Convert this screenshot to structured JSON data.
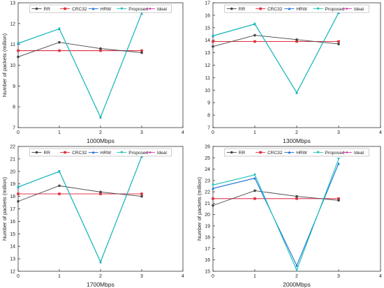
{
  "legend": [
    "RR",
    "CRC32",
    "HRW",
    "Proposed",
    "Ideal"
  ],
  "colors": {
    "RR": "#444444",
    "CRC32": "#e0303a",
    "HRW": "#1f6fd6",
    "Proposed": "#18c1b5",
    "Ideal": "#d23aa6"
  },
  "chart_data": [
    {
      "type": "line",
      "xlabel": "1000Mbps",
      "ylabel": "Number of packets (million)",
      "xlim": [
        0,
        4
      ],
      "ylim": [
        7,
        13
      ],
      "xticks": [
        "0",
        "1",
        "2",
        "3",
        "4"
      ],
      "yticks": [
        "7",
        "8",
        "9",
        "10",
        "11",
        "12",
        "13"
      ],
      "x": [
        0,
        1,
        2,
        3
      ],
      "legend_position": "top-center",
      "series": [
        {
          "name": "RR",
          "values": [
            10.4,
            11.1,
            10.8,
            10.6
          ]
        },
        {
          "name": "CRC32",
          "values": [
            10.7,
            10.7,
            10.7,
            10.7
          ]
        },
        {
          "name": "HRW",
          "values": [
            11.05,
            11.75,
            7.5,
            12.5
          ]
        },
        {
          "name": "Proposed",
          "values": [
            11.05,
            11.75,
            7.5,
            12.5
          ]
        },
        {
          "name": "Ideal",
          "values": [
            10.7,
            10.7,
            10.7,
            10.7
          ]
        }
      ]
    },
    {
      "type": "line",
      "xlabel": "1300Mbps",
      "ylabel": "",
      "xlim": [
        0,
        4
      ],
      "ylim": [
        7,
        17
      ],
      "xticks": [
        "0",
        "1",
        "2",
        "3",
        "4"
      ],
      "yticks": [
        "7",
        "8",
        "9",
        "10",
        "11",
        "12",
        "13",
        "14",
        "15",
        "16",
        "17"
      ],
      "x": [
        0,
        1,
        2,
        3
      ],
      "legend_position": "top-center",
      "series": [
        {
          "name": "RR",
          "values": [
            13.5,
            14.4,
            14.05,
            13.7
          ]
        },
        {
          "name": "CRC32",
          "values": [
            13.9,
            13.9,
            13.9,
            13.9
          ]
        },
        {
          "name": "HRW",
          "values": [
            14.35,
            15.3,
            9.8,
            16.2
          ]
        },
        {
          "name": "Proposed",
          "values": [
            14.35,
            15.3,
            9.8,
            16.2
          ]
        },
        {
          "name": "Ideal",
          "values": [
            13.9,
            13.9,
            13.9,
            13.9
          ]
        }
      ]
    },
    {
      "type": "line",
      "xlabel": "1700Mbps",
      "ylabel": "Number of packets (million)",
      "xlim": [
        0,
        4
      ],
      "ylim": [
        12,
        22
      ],
      "xticks": [
        "0",
        "1",
        "2",
        "3",
        "4"
      ],
      "yticks": [
        "12",
        "13",
        "14",
        "15",
        "16",
        "17",
        "18",
        "19",
        "20",
        "21",
        "22"
      ],
      "x": [
        0,
        1,
        2,
        3
      ],
      "legend_position": "top-center",
      "series": [
        {
          "name": "RR",
          "values": [
            17.6,
            18.85,
            18.35,
            18.0
          ]
        },
        {
          "name": "CRC32",
          "values": [
            18.2,
            18.2,
            18.2,
            18.2
          ]
        },
        {
          "name": "HRW",
          "values": [
            18.75,
            20.0,
            12.75,
            21.2
          ]
        },
        {
          "name": "Proposed",
          "values": [
            18.75,
            20.0,
            12.75,
            21.2
          ]
        },
        {
          "name": "Ideal",
          "values": [
            18.2,
            18.2,
            18.2,
            18.2
          ]
        }
      ]
    },
    {
      "type": "line",
      "xlabel": "2000Mbps",
      "ylabel": "Number of packets (million)",
      "xlim": [
        0,
        4
      ],
      "ylim": [
        15,
        26
      ],
      "xticks": [
        "0",
        "1",
        "2",
        "3",
        "4"
      ],
      "yticks": [
        "15",
        "16",
        "17",
        "18",
        "19",
        "20",
        "21",
        "22",
        "23",
        "24",
        "25",
        "26"
      ],
      "x": [
        0,
        1,
        2,
        3
      ],
      "legend_position": "top-center",
      "series": [
        {
          "name": "RR",
          "values": [
            20.8,
            22.1,
            21.6,
            21.25
          ]
        },
        {
          "name": "CRC32",
          "values": [
            21.4,
            21.4,
            21.4,
            21.4
          ]
        },
        {
          "name": "HRW",
          "values": [
            22.3,
            23.2,
            15.5,
            24.5
          ]
        },
        {
          "name": "Proposed",
          "values": [
            22.6,
            23.5,
            15.1,
            24.9
          ]
        },
        {
          "name": "Ideal",
          "values": [
            21.4,
            21.4,
            21.4,
            21.4
          ]
        }
      ]
    }
  ]
}
